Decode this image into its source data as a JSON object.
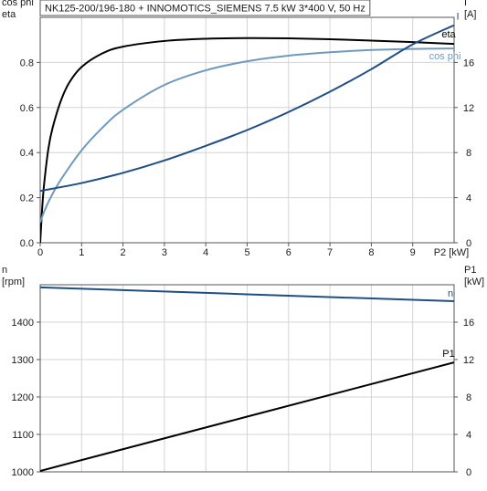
{
  "chart_data": [
    {
      "id": "top",
      "type": "line",
      "title": "NK125-200/196-180 + INNOMOTICS_SIEMENS   7.5 kW   3*400 V, 50 Hz",
      "xlabel": "P2 [kW]",
      "xlim": [
        0,
        10
      ],
      "xticks": [
        0,
        1,
        2,
        3,
        4,
        5,
        6,
        7,
        8,
        9
      ],
      "ylabel_left": [
        "cos phi",
        "eta"
      ],
      "ylim_left": [
        0,
        1
      ],
      "yticks_left": [
        0.0,
        0.2,
        0.4,
        0.6,
        0.8
      ],
      "ylabel_right": [
        "I",
        "[A]"
      ],
      "ylim_right": [
        0,
        20
      ],
      "yticks_right": [
        0,
        4,
        8,
        12,
        16
      ],
      "grid": true,
      "series": [
        {
          "name": "eta",
          "axis": "left",
          "color": "#000000",
          "x": [
            0,
            0.05,
            0.1,
            0.2,
            0.3,
            0.5,
            0.7,
            1.0,
            1.5,
            2,
            3,
            4,
            5,
            6,
            7,
            8,
            9,
            10
          ],
          "y": [
            0.0,
            0.16,
            0.27,
            0.42,
            0.51,
            0.63,
            0.71,
            0.78,
            0.84,
            0.87,
            0.895,
            0.905,
            0.908,
            0.907,
            0.903,
            0.897,
            0.89,
            0.882
          ]
        },
        {
          "name": "cos phi",
          "axis": "left",
          "color": "#6f99bd",
          "x": [
            0,
            0.1,
            0.25,
            0.5,
            1,
            1.5,
            2,
            3,
            4,
            5,
            6,
            7,
            8,
            9,
            10
          ],
          "y": [
            0.09,
            0.14,
            0.2,
            0.28,
            0.41,
            0.51,
            0.59,
            0.7,
            0.765,
            0.805,
            0.83,
            0.845,
            0.855,
            0.86,
            0.862
          ]
        },
        {
          "name": "I",
          "axis": "right",
          "color": "#1f4e86",
          "x": [
            0,
            1,
            2,
            3,
            4,
            5,
            6,
            7,
            8,
            9,
            10
          ],
          "y": [
            4.6,
            5.3,
            6.2,
            7.3,
            8.6,
            10.0,
            11.6,
            13.4,
            15.4,
            17.6,
            19.3
          ]
        }
      ]
    },
    {
      "id": "bottom",
      "type": "line",
      "xlim": [
        0,
        10
      ],
      "ylabel_left": [
        "n",
        "[rpm]"
      ],
      "ylim_left": [
        1000,
        1500
      ],
      "yticks_left": [
        1000,
        1100,
        1200,
        1300,
        1400
      ],
      "ylabel_right": [
        "P1",
        "[kW]"
      ],
      "ylim_right": [
        0,
        20
      ],
      "yticks_right": [
        0,
        4,
        8,
        12,
        16
      ],
      "grid": true,
      "series": [
        {
          "name": "n",
          "axis": "left",
          "color": "#1f4e86",
          "x": [
            0,
            10
          ],
          "y": [
            1493,
            1456
          ]
        },
        {
          "name": "P1",
          "axis": "right",
          "color": "#000000",
          "x": [
            0,
            10
          ],
          "y": [
            0.1,
            11.7
          ]
        }
      ]
    }
  ]
}
